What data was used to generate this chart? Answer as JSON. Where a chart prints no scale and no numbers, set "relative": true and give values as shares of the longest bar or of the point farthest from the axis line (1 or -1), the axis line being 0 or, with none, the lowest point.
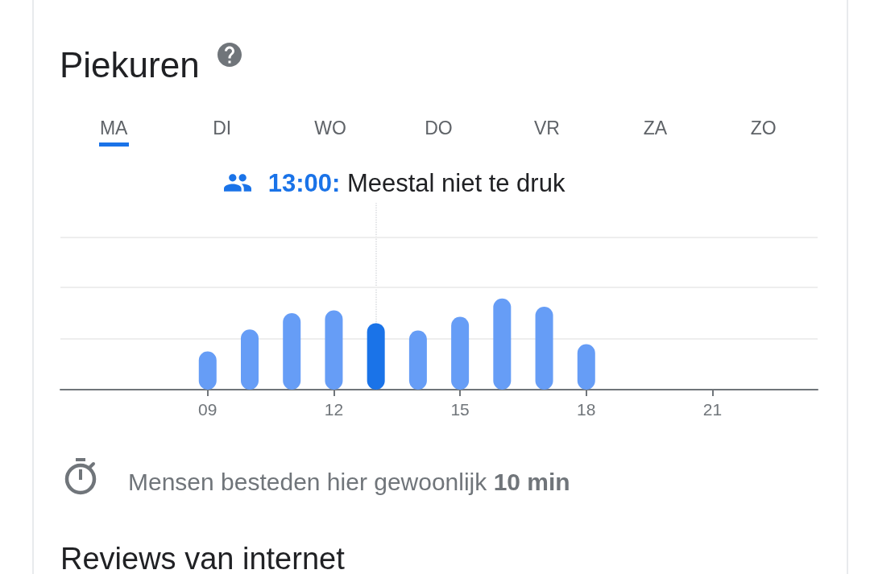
{
  "chart_data": {
    "type": "bar",
    "title": "Piekuren",
    "x": [
      9,
      10,
      11,
      12,
      13,
      14,
      15,
      16,
      17,
      18
    ],
    "values": [
      0.42,
      0.66,
      0.84,
      0.87,
      0.73,
      0.65,
      0.8,
      1,
      0.91,
      0.5
    ],
    "colors": [
      "#669df6",
      "#669df6",
      "#669df6",
      "#669df6",
      "#1a73e8",
      "#669df6",
      "#669df6",
      "#669df6",
      "#669df6",
      "#669df6"
    ],
    "relative": true,
    "xlim": [
      5.5,
      23.5
    ],
    "xticks": [
      {
        "value": 9,
        "label": "09"
      },
      12,
      15,
      18,
      21
    ],
    "ref_lines": [
      {
        "axis": "x",
        "value": 13,
        "label": "13:00: Meestal niet te druk",
        "line_style": "dotted",
        "color": "#dadce0"
      },
      {
        "axis": "y",
        "value": 0.56,
        "color": "#eeeeee",
        "line_style": "solid"
      },
      {
        "axis": "y",
        "value": 1.12,
        "color": "#eeeeee",
        "line_style": "solid"
      },
      {
        "axis": "y",
        "value": 1.67,
        "color": "#eeeeee",
        "line_style": "solid"
      }
    ],
    "annotations": [
      "MA",
      "DI",
      "WO",
      "DO",
      "VR",
      "ZA",
      "ZO",
      "Mensen besteden hier gewoonlijk",
      "10 min",
      "Reviews van internet"
    ]
  }
}
